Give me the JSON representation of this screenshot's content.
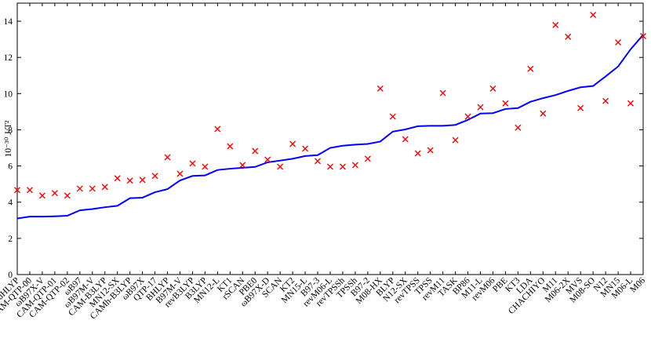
{
  "chart_data": {
    "type": "line",
    "ylabel": "10⁻³⁰ J/T²",
    "categories": [
      "BHandHLYP",
      "CAM-QTP-00",
      "ωB97X-V",
      "CAM-QTP-01",
      "CAM-QTP-02",
      "ωB97",
      "ωB97M-V",
      "CAM-B3LYP",
      "MN12-SX",
      "CAMh-B3LYP",
      "ωB97X",
      "QTP-17",
      "BHLYP",
      "B97M-V",
      "revB3LYP",
      "B3LYP",
      "MN12-L",
      "KT1",
      "rSCAN",
      "PBE0",
      "ωB97X-D",
      "SCAN",
      "KT2",
      "MN15-L",
      "B97-3",
      "revM06-L",
      "revTPSSh",
      "TPSSh",
      "B97-2",
      "M08-HX",
      "BLYP",
      "N12-SX",
      "revTPSS",
      "TPSS",
      "revM11",
      "TASK",
      "BP86",
      "M11-L",
      "revM06",
      "PBE",
      "KT3",
      "LDA",
      "CHACHIYO",
      "M11",
      "M06-2X",
      "MVS",
      "M08-SO",
      "N12",
      "MN15",
      "M06-L",
      "M06"
    ],
    "series": [
      {
        "color": "#0000ff",
        "style": "line",
        "values": [
          3.1,
          3.2,
          3.2,
          3.22,
          3.25,
          3.55,
          3.62,
          3.72,
          3.8,
          4.22,
          4.25,
          4.55,
          4.72,
          5.2,
          5.45,
          5.48,
          5.78,
          5.85,
          5.9,
          5.95,
          6.2,
          6.3,
          6.4,
          6.55,
          6.6,
          7.0,
          7.12,
          7.18,
          7.22,
          7.35,
          7.9,
          8.02,
          8.2,
          8.22,
          8.22,
          8.27,
          8.55,
          8.9,
          8.92,
          9.15,
          9.2,
          9.55,
          9.75,
          9.92,
          10.15,
          10.35,
          10.42,
          10.95,
          11.5,
          12.45,
          13.25
        ]
      },
      {
        "color": "#ff0000",
        "style": "marker",
        "values": [
          4.67,
          4.67,
          4.36,
          4.5,
          4.36,
          4.75,
          4.75,
          4.84,
          5.32,
          5.19,
          5.23,
          5.45,
          6.48,
          5.57,
          6.14,
          5.96,
          8.04,
          7.09,
          6.05,
          6.83,
          6.35,
          5.96,
          7.22,
          6.96,
          6.27,
          5.96,
          5.96,
          6.05,
          6.4,
          10.28,
          8.73,
          7.48,
          6.7,
          6.87,
          10.03,
          7.43,
          8.73,
          9.25,
          10.28,
          9.46,
          8.12,
          11.37,
          8.9,
          13.79,
          13.14,
          9.2,
          14.35,
          9.59,
          12.83,
          9.46,
          13.18
        ]
      }
    ],
    "ylim": [
      0,
      15
    ],
    "yticks": [
      0,
      2,
      4,
      6,
      8,
      10,
      12,
      14
    ],
    "grid": false
  }
}
